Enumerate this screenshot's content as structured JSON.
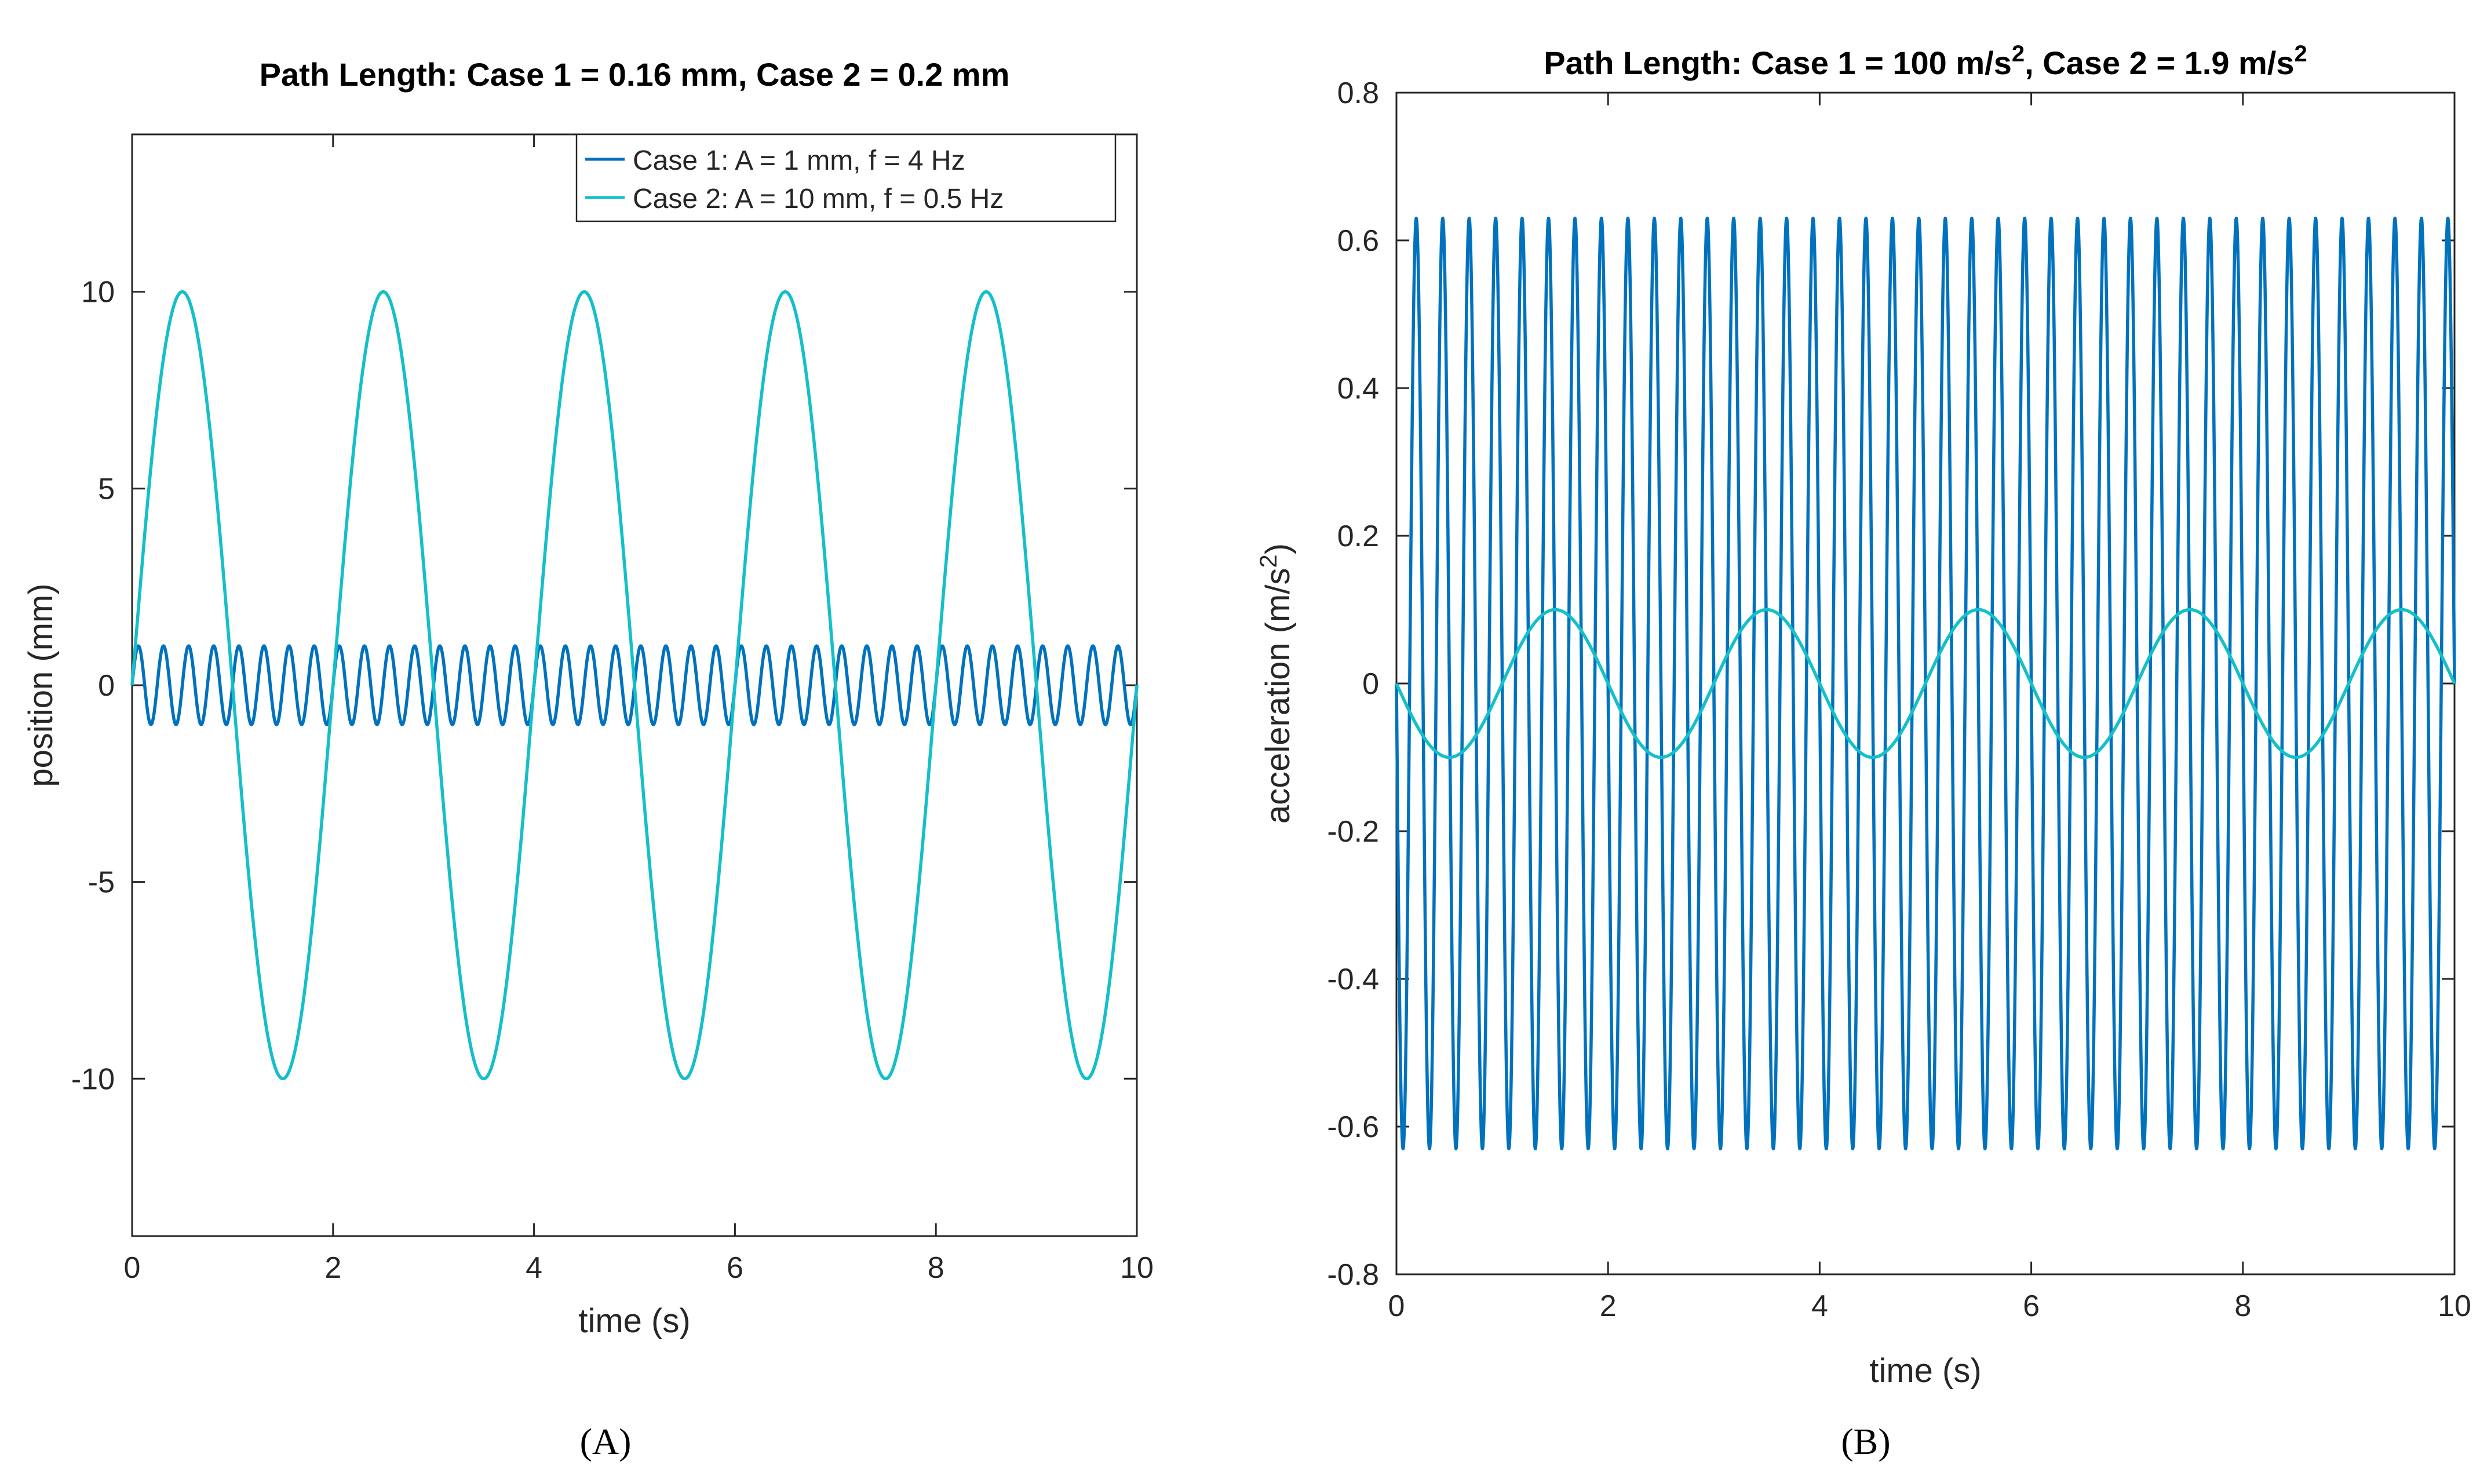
{
  "chart_data": [
    {
      "panel": "A",
      "type": "line",
      "title": "Path Length: Case 1 = 0.16 mm, Case 2 = 0.2 mm",
      "xlabel": "time (s)",
      "ylabel": "position (mm)",
      "xlim": [
        0,
        10
      ],
      "ylim": [
        -14,
        14
      ],
      "xticks": [
        0,
        2,
        4,
        6,
        8,
        10
      ],
      "xtick_labels": [
        "0",
        "2",
        "4",
        "6",
        "8",
        "10"
      ],
      "yticks": [
        -10,
        -5,
        0,
        5,
        10
      ],
      "ytick_labels": [
        "-10",
        "-5",
        "0",
        "5",
        "10"
      ],
      "legend": "top-right",
      "series": [
        {
          "name": "Case 1: A = 1 mm, f = 4 Hz",
          "shape": "sin",
          "amplitude": 1,
          "frequency": 4,
          "color": "#0072BD"
        },
        {
          "name": "Case 2: A = 10 mm, f = 0.5 Hz",
          "shape": "sin",
          "amplitude": 10,
          "frequency": 0.5,
          "color": "#15BFC9"
        }
      ]
    },
    {
      "panel": "B",
      "type": "line",
      "title_parts": [
        "Path Length: Case 1 = 100 m/s",
        "2",
        ", Case 2 = 1.9 m/s",
        "2"
      ],
      "xlabel": "time (s)",
      "ylabel_parts": [
        "acceleration (m/s",
        "2",
        ")"
      ],
      "xlim": [
        0,
        10
      ],
      "ylim": [
        -0.8,
        0.8
      ],
      "xticks": [
        0,
        2,
        4,
        6,
        8,
        10
      ],
      "xtick_labels": [
        "0",
        "2",
        "4",
        "6",
        "8",
        "10"
      ],
      "yticks": [
        -0.8,
        -0.6,
        -0.4,
        -0.2,
        0,
        0.2,
        0.4,
        0.6,
        0.8
      ],
      "ytick_labels": [
        "-0.8",
        "-0.6",
        "-0.4",
        "-0.2",
        "0",
        "0.2",
        "0.4",
        "0.6",
        "0.8"
      ],
      "series": [
        {
          "name": "Case 1",
          "shape": "neg-sin",
          "amplitude": 0.63,
          "frequency": 4,
          "color": "#0072BD"
        },
        {
          "name": "Case 2",
          "shape": "neg-sin",
          "amplitude": 0.1,
          "frequency": 0.5,
          "color": "#15BFC9"
        }
      ]
    }
  ],
  "panel_labels": [
    "(A)",
    "(B)"
  ]
}
